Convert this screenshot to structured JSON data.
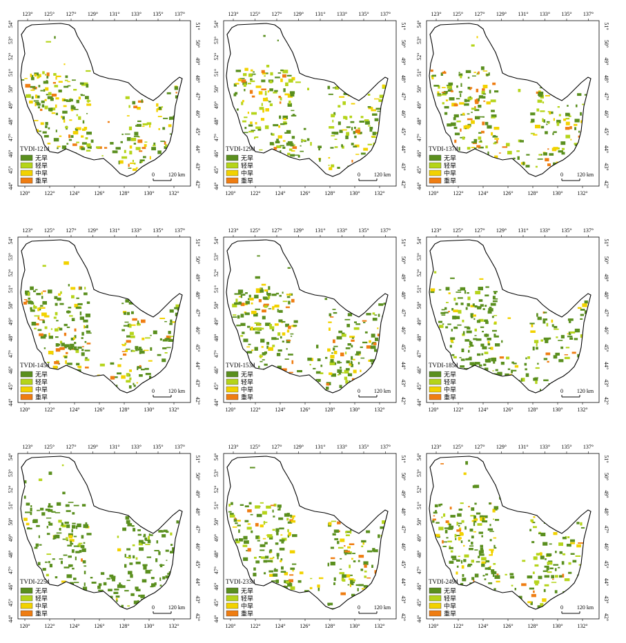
{
  "lon_top": [
    "123°",
    "125°",
    "127°",
    "129°",
    "131°",
    "133°",
    "135°",
    "137°"
  ],
  "lon_bottom": [
    "120°",
    "122°",
    "124°",
    "126°",
    "128°",
    "130°",
    "132°"
  ],
  "lat_left": [
    "54°",
    "53°",
    "52°",
    "51°",
    "50°",
    "49°",
    "48°",
    "47°",
    "46°",
    "45°",
    "44°"
  ],
  "lat_right": [
    "51°",
    "50°",
    "49°",
    "48°",
    "47°",
    "46°",
    "45°",
    "44°",
    "43°",
    "42°"
  ],
  "legend": [
    {
      "label": "无旱",
      "color": "#5a8f1e"
    },
    {
      "label": "轻旱",
      "color": "#b5d41a"
    },
    {
      "label": "中旱",
      "color": "#f2d200"
    },
    {
      "label": "重旱",
      "color": "#ef7d12"
    }
  ],
  "scale": {
    "zero": "0",
    "dist": "120 km"
  },
  "panels": [
    {
      "title": "TVDI-121d",
      "mix": [
        0.45,
        0.2,
        0.22,
        0.13
      ]
    },
    {
      "title": "TVDI-129d",
      "mix": [
        0.5,
        0.2,
        0.22,
        0.08
      ]
    },
    {
      "title": "TVDI-137d",
      "mix": [
        0.5,
        0.18,
        0.2,
        0.12
      ]
    },
    {
      "title": "TVDI-145d",
      "mix": [
        0.62,
        0.15,
        0.15,
        0.08
      ]
    },
    {
      "title": "TVDI-153d",
      "mix": [
        0.6,
        0.15,
        0.15,
        0.1
      ]
    },
    {
      "title": "TVDI-185d",
      "mix": [
        0.72,
        0.12,
        0.11,
        0.05
      ]
    },
    {
      "title": "TVDI-225d",
      "mix": [
        0.85,
        0.1,
        0.04,
        0.01
      ]
    },
    {
      "title": "TVDI-233d",
      "mix": [
        0.6,
        0.16,
        0.14,
        0.1
      ]
    },
    {
      "title": "TVDI-249d",
      "mix": [
        0.62,
        0.18,
        0.15,
        0.05
      ]
    }
  ]
}
